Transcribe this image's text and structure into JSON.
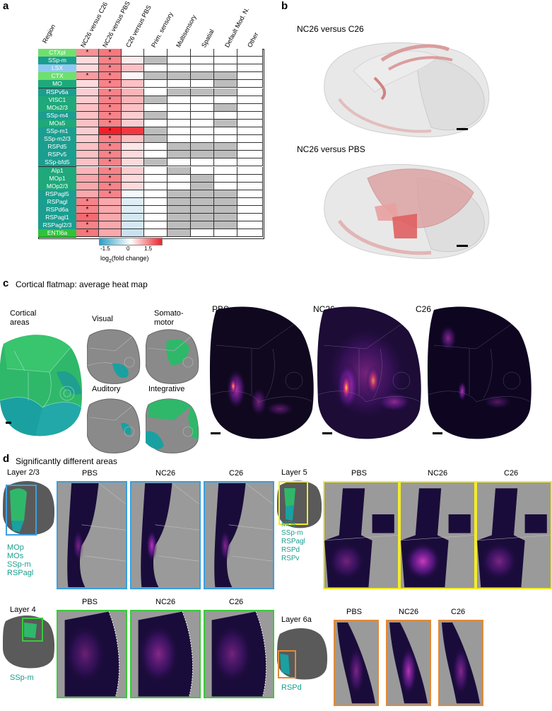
{
  "panel_a": {
    "letter": "a",
    "region_header": "Region",
    "columns": [
      "NC26 versus C26",
      "NC26 versus PBS",
      "C26 versus PBS",
      "Prim. sensory",
      "Multisensory",
      "Spatial",
      "Default Mod. N.",
      "Other"
    ],
    "rows": [
      {
        "region": "CTXpl",
        "color": "#6ee06e",
        "fc": [
          0.9,
          1.1,
          0.0
        ],
        "star": [
          true,
          true
        ],
        "cat": [
          0,
          0,
          0,
          0,
          0
        ]
      },
      {
        "region": "SSp-m",
        "color": "#1a9e8f",
        "fc": [
          0.3,
          1.0,
          0.15
        ],
        "star": [
          false,
          true
        ],
        "cat": [
          1,
          0,
          0,
          0,
          0
        ]
      },
      {
        "region": "LSX",
        "color": "#8fc9f0",
        "fc": [
          0.3,
          1.0,
          0.5
        ],
        "star": [
          false,
          true
        ],
        "cat": [
          0,
          0,
          0,
          0,
          0
        ]
      },
      {
        "region": "CTX",
        "color": "#6ee06e",
        "fc": [
          0.8,
          1.0,
          0.1
        ],
        "star": [
          true,
          true
        ],
        "cat": [
          1,
          1,
          1,
          1,
          0
        ]
      },
      {
        "region": "MO",
        "color": "#1fa87a",
        "fc": [
          0.3,
          1.0,
          0.5
        ],
        "star": [
          false,
          true
        ],
        "cat": [
          0,
          0,
          0,
          1,
          0
        ]
      },
      {
        "region": "RSPv6a",
        "color": "#1a9e8f",
        "fc": [
          0.4,
          1.0,
          0.6
        ],
        "star": [
          false,
          true
        ],
        "cat": [
          0,
          1,
          1,
          1,
          0
        ]
      },
      {
        "region": "VISC1",
        "color": "#1fa87a",
        "fc": [
          0.4,
          1.0,
          0.6
        ],
        "star": [
          false,
          true
        ],
        "cat": [
          1,
          0,
          0,
          0,
          0
        ]
      },
      {
        "region": "MOs2/3",
        "color": "#1fa87a",
        "fc": [
          0.5,
          1.0,
          0.5
        ],
        "star": [
          false,
          true
        ],
        "cat": [
          0,
          0,
          0,
          1,
          0
        ]
      },
      {
        "region": "SSp-m4",
        "color": "#1a9e8f",
        "fc": [
          0.5,
          1.0,
          0.4
        ],
        "star": [
          false,
          true
        ],
        "cat": [
          1,
          0,
          0,
          0,
          0
        ]
      },
      {
        "region": "MOs5",
        "color": "#1fa87a",
        "fc": [
          0.5,
          1.0,
          0.4
        ],
        "star": [
          false,
          true
        ],
        "cat": [
          0,
          0,
          0,
          1,
          0
        ]
      },
      {
        "region": "SSp-m1",
        "color": "#1a9e8f",
        "fc": [
          0.4,
          1.8,
          1.6
        ],
        "star": [
          false,
          true
        ],
        "cat": [
          1,
          0,
          0,
          0,
          0
        ]
      },
      {
        "region": "SSp-m2/3",
        "color": "#1a9e8f",
        "fc": [
          0.4,
          1.0,
          0.5
        ],
        "star": [
          false,
          true
        ],
        "cat": [
          1,
          0,
          0,
          0,
          0
        ]
      },
      {
        "region": "RSPd5",
        "color": "#1a9e8f",
        "fc": [
          0.5,
          1.0,
          0.2
        ],
        "star": [
          false,
          true
        ],
        "cat": [
          0,
          1,
          1,
          1,
          0
        ]
      },
      {
        "region": "RSPv5",
        "color": "#1a9e8f",
        "fc": [
          0.5,
          1.0,
          0.3
        ],
        "star": [
          false,
          true
        ],
        "cat": [
          0,
          1,
          1,
          1,
          0
        ]
      },
      {
        "region": "SSp-bfd5",
        "color": "#1a9e8f",
        "fc": [
          0.5,
          1.0,
          0.3
        ],
        "star": [
          false,
          true
        ],
        "cat": [
          1,
          0,
          0,
          0,
          0
        ]
      },
      {
        "region": "AIp1",
        "color": "#1fa87a",
        "fc": [
          0.6,
          1.0,
          0.4
        ],
        "star": [
          false,
          true
        ],
        "cat": [
          0,
          1,
          0,
          0,
          0
        ]
      },
      {
        "region": "MOp1",
        "color": "#1fa87a",
        "fc": [
          0.7,
          1.0,
          0.3
        ],
        "star": [
          false,
          true
        ],
        "cat": [
          0,
          0,
          1,
          0,
          0
        ]
      },
      {
        "region": "MOp2/3",
        "color": "#1fa87a",
        "fc": [
          0.7,
          1.0,
          0.3
        ],
        "star": [
          false,
          true
        ],
        "cat": [
          0,
          0,
          1,
          0,
          0
        ]
      },
      {
        "region": "RSPagl5",
        "color": "#1a9e8f",
        "fc": [
          0.7,
          1.0,
          -0.1
        ],
        "star": [
          false,
          true
        ],
        "cat": [
          0,
          1,
          1,
          1,
          0
        ]
      },
      {
        "region": "RSPagl",
        "color": "#1a9e8f",
        "fc": [
          1.0,
          0.7,
          -0.3
        ],
        "star": [
          true,
          false
        ],
        "cat": [
          0,
          1,
          1,
          1,
          0
        ]
      },
      {
        "region": "RSPd6a",
        "color": "#1a9e8f",
        "fc": [
          1.0,
          0.7,
          -0.3
        ],
        "star": [
          true,
          false
        ],
        "cat": [
          0,
          1,
          1,
          1,
          0
        ]
      },
      {
        "region": "RSPagl1",
        "color": "#1a9e8f",
        "fc": [
          1.2,
          0.7,
          -0.4
        ],
        "star": [
          true,
          false
        ],
        "cat": [
          0,
          1,
          1,
          1,
          0
        ]
      },
      {
        "region": "RSPagl2/3",
        "color": "#1a9e8f",
        "fc": [
          1.0,
          0.7,
          -0.4
        ],
        "star": [
          true,
          false
        ],
        "cat": [
          0,
          1,
          1,
          1,
          0
        ]
      },
      {
        "region": "ENTl6a",
        "color": "#2fc23a",
        "fc": [
          1.1,
          0.7,
          -0.5
        ],
        "star": [
          true,
          false
        ],
        "cat": [
          0,
          1,
          0,
          0,
          0
        ]
      }
    ],
    "star": "*",
    "colorbar_ticks": [
      "-1.5",
      "0",
      "1.5"
    ],
    "colorbar_label_pre": "log",
    "colorbar_label_sub": "2",
    "colorbar_label_post": "(fold change)"
  },
  "panel_b": {
    "letter": "b",
    "title1": "NC26 versus C26",
    "title2": "NC26 versus PBS"
  },
  "panel_c": {
    "letter": "c",
    "title": "Cortical flatmap: average heat map",
    "areas_label_1": "Cortical",
    "areas_label_2": "areas",
    "small_maps": [
      "Visual",
      "Somato-",
      "motor",
      "Auditory",
      "Integrative"
    ],
    "heat_titles": [
      "PBS",
      "NC26",
      "C26"
    ]
  },
  "panel_d": {
    "letter": "d",
    "title": "Significantly different areas",
    "layer23": {
      "label": "Layer 2/3",
      "areas": [
        "MOp",
        "MOs",
        "SSp-m",
        "RSPagl"
      ],
      "titles": [
        "PBS",
        "NC26",
        "C26"
      ],
      "color": "#3aa0e0"
    },
    "layer5": {
      "label": "Layer 5",
      "areas": [
        "MOs",
        "SSp-m",
        "RSPagl",
        "RSPd",
        "RSPv"
      ],
      "titles": [
        "PBS",
        "NC26",
        "C26"
      ],
      "color": "#f2ec28"
    },
    "layer4": {
      "label": "Layer 4",
      "areas": [
        "SSp-m"
      ],
      "titles": [
        "PBS",
        "NC26",
        "C26"
      ],
      "color": "#3cc83c"
    },
    "layer6a": {
      "label": "Layer 6a",
      "areas": [
        "RSPd"
      ],
      "titles": [
        "PBS",
        "NC26",
        "C26"
      ],
      "color": "#e08a3a"
    }
  }
}
